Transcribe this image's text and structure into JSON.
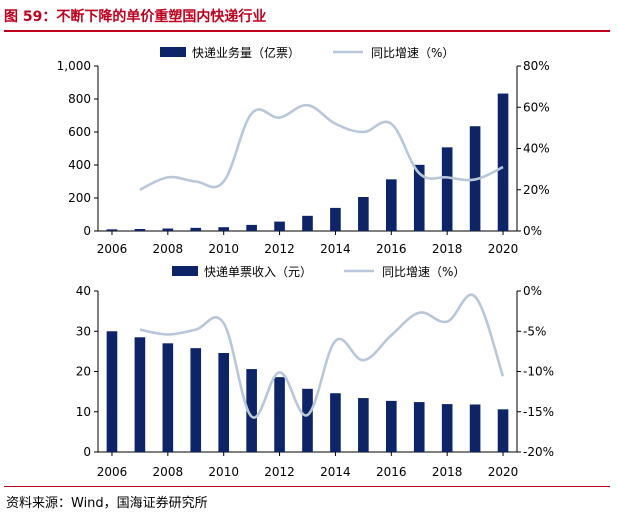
{
  "title": "图 59：不断下降的单价重塑国内快递行业",
  "source": "资料来源：Wind，国海证券研究所",
  "colors": {
    "bar": "#0d2568",
    "line": "#b9c7da",
    "accent": "#c0001d"
  },
  "chart_data": [
    {
      "type": "bar",
      "x": [
        2006,
        2007,
        2008,
        2009,
        2010,
        2011,
        2012,
        2013,
        2014,
        2015,
        2016,
        2017,
        2018,
        2019,
        2020
      ],
      "xticks": [
        "2006",
        "2008",
        "2010",
        "2012",
        "2014",
        "2016",
        "2018",
        "2020"
      ],
      "series": [
        {
          "name": "快递业务量（亿票）",
          "kind": "bar",
          "axis": "left",
          "values": [
            10,
            12,
            15,
            19,
            23,
            37,
            57,
            92,
            140,
            206,
            313,
            401,
            507,
            635,
            833
          ]
        },
        {
          "name": "同比增速（%）",
          "kind": "line",
          "axis": "right",
          "values": [
            null,
            20,
            26,
            24,
            24,
            57,
            55,
            61,
            52,
            48,
            52,
            28,
            26,
            25,
            31
          ]
        }
      ],
      "ylim": [
        0,
        1000
      ],
      "yticks": [
        "0",
        "200",
        "400",
        "600",
        "800",
        "1,000"
      ],
      "y2lim": [
        0,
        80
      ],
      "y2ticks": [
        "0%",
        "20%",
        "40%",
        "60%",
        "80%"
      ],
      "legend": "top-center",
      "grid": false
    },
    {
      "type": "bar",
      "x": [
        2006,
        2007,
        2008,
        2009,
        2010,
        2011,
        2012,
        2013,
        2014,
        2015,
        2016,
        2017,
        2018,
        2019,
        2020
      ],
      "xticks": [
        "2006",
        "2008",
        "2010",
        "2012",
        "2014",
        "2016",
        "2018",
        "2020"
      ],
      "series": [
        {
          "name": "快递单票收入（元）",
          "kind": "bar",
          "axis": "left",
          "values": [
            30.0,
            28.5,
            27.0,
            25.8,
            24.6,
            20.6,
            18.6,
            15.7,
            14.6,
            13.4,
            12.7,
            12.4,
            11.9,
            11.8,
            10.6
          ]
        },
        {
          "name": "同比增速（%）",
          "kind": "line",
          "axis": "right",
          "values": [
            null,
            -4.8,
            -5.4,
            -4.8,
            -4.0,
            -15.6,
            -10.1,
            -15.4,
            -6.2,
            -8.6,
            -5.5,
            -2.7,
            -3.8,
            -0.7,
            -10.6
          ]
        }
      ],
      "ylim": [
        0,
        40
      ],
      "yticks": [
        "0",
        "10",
        "20",
        "30",
        "40"
      ],
      "y2lim": [
        -20,
        0
      ],
      "y2ticks": [
        "-20%",
        "-15%",
        "-10%",
        "-5%",
        "0%"
      ],
      "legend": "top-center",
      "grid": false
    }
  ]
}
